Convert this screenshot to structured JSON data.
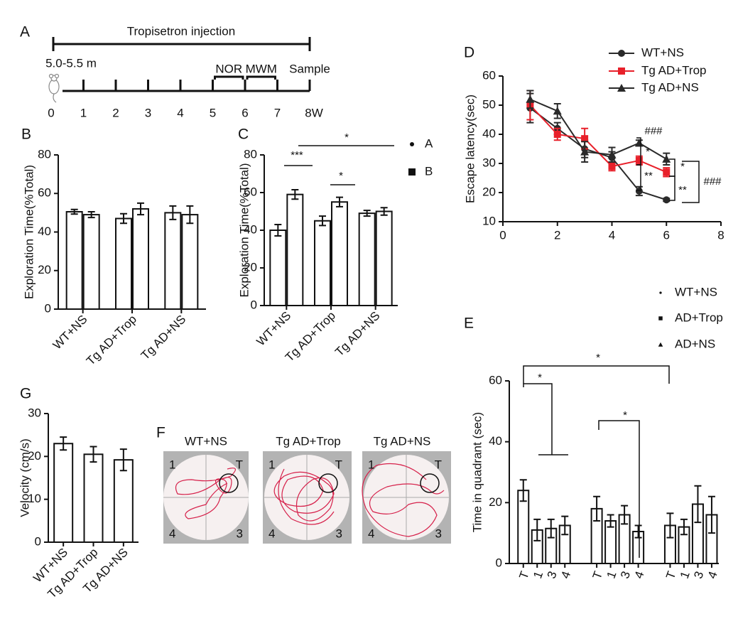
{
  "timeline": {
    "label": "A",
    "title": "Tropisetron injection",
    "age": "5.0-5.5 m",
    "ticks": [
      0,
      1,
      2,
      3,
      4,
      5,
      6,
      7,
      {
        "value": 8,
        "label": "8W"
      }
    ],
    "events": [
      {
        "name": "NOR",
        "range": [
          5,
          6
        ]
      },
      {
        "name": "MWM",
        "range": [
          6,
          7
        ]
      },
      {
        "name": "Sample",
        "range": [
          8,
          8
        ]
      }
    ],
    "injection": [
      0,
      8
    ]
  },
  "trajectories": {
    "label": "F",
    "titles": [
      "WT+NS",
      "Tg AD+Trop",
      "Tg AD+NS"
    ],
    "quadrants": [
      "1",
      "T",
      "4",
      "3"
    ]
  },
  "chart_data": [
    {
      "type": "bar",
      "label": "B",
      "ylabel": "Exploration Time(%Total)",
      "categories": [
        "WT+NS",
        "Tg AD+Trop",
        "Tg AD+NS"
      ],
      "series": [
        {
          "color": "#ffffff",
          "values": [
            50.5,
            47,
            50
          ],
          "errors": [
            1.2,
            2.5,
            3.5
          ]
        },
        {
          "color": "#ffffff",
          "values": [
            49,
            52,
            49
          ],
          "errors": [
            1.5,
            3,
            4.5
          ]
        }
      ],
      "ylim": [
        0,
        80
      ],
      "yticks": [
        0,
        20,
        40,
        60,
        80
      ]
    },
    {
      "type": "bar",
      "label": "C",
      "ylabel": "Exploration Time(%Total)",
      "categories": [
        "WT+NS",
        "Tg AD+Trop",
        "Tg AD+NS"
      ],
      "series": [
        {
          "name": "A",
          "color": "#ffffff",
          "values": [
            40,
            45,
            49
          ],
          "errors": [
            3,
            2.5,
            1.5
          ]
        },
        {
          "name": "B",
          "color": "#ffffff",
          "values": [
            59,
            55,
            50
          ],
          "errors": [
            2.5,
            2.5,
            2
          ]
        }
      ],
      "ylim": [
        0,
        80
      ],
      "yticks": [
        0,
        20,
        40,
        60,
        80
      ],
      "annotations": [
        "***",
        "*",
        "*"
      ]
    },
    {
      "type": "line",
      "label": "D",
      "ylabel": "Escape latency(sec)",
      "x": [
        1,
        2,
        3,
        4,
        5,
        6
      ],
      "series": [
        {
          "name": "WT+NS",
          "color": "#2a2a2a",
          "marker": "circle",
          "values": [
            49,
            42,
            35,
            32,
            20.5,
            17.5
          ],
          "errors": [
            5,
            2,
            3,
            2,
            1.5,
            0.5
          ]
        },
        {
          "name": "Tg AD+Trop",
          "color": "#e8202a",
          "marker": "square",
          "values": [
            50,
            40,
            38.5,
            29,
            31,
            27
          ],
          "errors": [
            5,
            2,
            3.5,
            1.5,
            1.5,
            1.5
          ]
        },
        {
          "name": "Tg AD+NS",
          "color": "#2a2a2a",
          "marker": "triangle",
          "values": [
            52,
            48,
            34,
            33,
            37,
            31.5
          ],
          "errors": [
            3,
            2.5,
            3.5,
            2.5,
            1,
            2
          ]
        }
      ],
      "xlim": [
        0,
        8
      ],
      "xticks": [
        0,
        2,
        4,
        6,
        8
      ],
      "ylim": [
        10,
        60
      ],
      "yticks": [
        10,
        20,
        30,
        40,
        50,
        60
      ],
      "annotations": [
        "###",
        "*",
        "**",
        "*",
        "**",
        "###"
      ]
    },
    {
      "type": "bar",
      "label": "E",
      "ylabel": "Time in quadrant (sec)",
      "categories": [
        "T",
        "1",
        "3",
        "4",
        "T",
        "1",
        "3",
        "4",
        "T",
        "1",
        "3",
        "4"
      ],
      "values": [
        24,
        11,
        11.5,
        12.5,
        18,
        14,
        16,
        10.5,
        12.5,
        12,
        19.5,
        16
      ],
      "errors": [
        3.5,
        3.5,
        3,
        3,
        4,
        2,
        3,
        2,
        4,
        2.5,
        6,
        6
      ],
      "legend": [
        {
          "name": "WT+NS",
          "marker": "circle"
        },
        {
          "name": "AD+Trop",
          "marker": "square"
        },
        {
          "name": "AD+NS",
          "marker": "triangle"
        }
      ],
      "ylim": [
        0,
        60
      ],
      "yticks": [
        0,
        20,
        40,
        60
      ],
      "annotations": [
        "*",
        "*",
        "*"
      ]
    },
    {
      "type": "bar",
      "label": "G",
      "ylabel": "Velocity (cm/s)",
      "categories": [
        "WT+NS",
        "Tg AD+Trop",
        "Tg AD+NS"
      ],
      "values": [
        23,
        20.5,
        19.2
      ],
      "errors": [
        1.5,
        1.8,
        2.5
      ],
      "color": "#ffffff",
      "ylim": [
        0,
        30
      ],
      "yticks": [
        0,
        10,
        20,
        30
      ]
    }
  ]
}
